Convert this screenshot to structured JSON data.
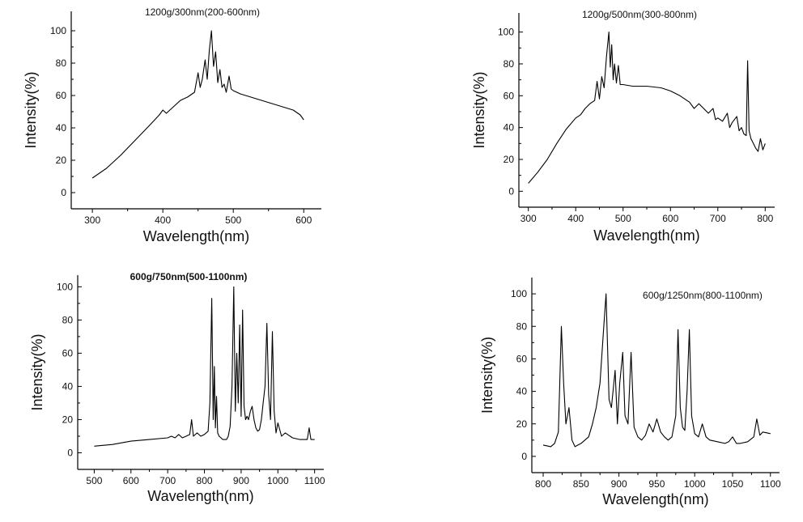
{
  "chart_data": [
    {
      "type": "line",
      "title": "1200g/300nm(200-600nm)",
      "xlabel": "Wavelength(nm)",
      "ylabel": "Intensity(%)",
      "xlim": [
        270,
        625
      ],
      "ylim": [
        -10,
        112
      ],
      "xticks": [
        300,
        400,
        500,
        600
      ],
      "yticks": [
        0,
        20,
        40,
        60,
        80,
        100
      ],
      "series": [
        {
          "color": "#000000",
          "x": [
            300,
            320,
            340,
            360,
            380,
            395,
            400,
            405,
            415,
            425,
            435,
            445,
            450,
            453,
            456,
            460,
            463,
            466,
            469,
            472,
            475,
            478,
            481,
            484,
            487,
            490,
            494,
            497,
            500,
            510,
            525,
            540,
            555,
            570,
            585,
            595,
            600
          ],
          "y": [
            9,
            15,
            23,
            32,
            41,
            48,
            51,
            49,
            53,
            57,
            59,
            62,
            74,
            65,
            70,
            82,
            70,
            88,
            100,
            78,
            87,
            68,
            76,
            65,
            67,
            62,
            72,
            64,
            63,
            61,
            59,
            57,
            55,
            53,
            51,
            48,
            45
          ]
        }
      ]
    },
    {
      "type": "line",
      "title": "1200g/500nm(300-800nm)",
      "xlabel": "Wavelength(nm)",
      "ylabel": "Intensity(%)",
      "xlim": [
        280,
        820
      ],
      "ylim": [
        -10,
        112
      ],
      "xticks": [
        300,
        400,
        500,
        600,
        700,
        800
      ],
      "yticks": [
        0,
        20,
        40,
        60,
        80,
        100
      ],
      "series": [
        {
          "color": "#000000",
          "x": [
            300,
            320,
            340,
            360,
            380,
            400,
            410,
            420,
            430,
            440,
            445,
            450,
            455,
            460,
            465,
            470,
            473,
            476,
            479,
            482,
            486,
            490,
            494,
            500,
            520,
            550,
            580,
            600,
            620,
            640,
            650,
            660,
            680,
            690,
            695,
            700,
            710,
            720,
            725,
            730,
            740,
            745,
            750,
            755,
            760,
            763,
            766,
            770,
            775,
            780,
            785,
            790,
            795,
            800
          ],
          "y": [
            5,
            12,
            20,
            30,
            39,
            46,
            48,
            52,
            55,
            57,
            69,
            58,
            72,
            65,
            85,
            100,
            78,
            92,
            70,
            80,
            68,
            79,
            67,
            67,
            66,
            66,
            65,
            63,
            60,
            56,
            52,
            55,
            49,
            52,
            45,
            46,
            44,
            49,
            40,
            43,
            47,
            38,
            40,
            36,
            35,
            82,
            38,
            33,
            30,
            27,
            25,
            33,
            26,
            30
          ]
        }
      ]
    },
    {
      "type": "line",
      "title": "600g/750nm(500-1100nm)",
      "xlabel": "Wavelength(nm)",
      "ylabel": "Intensity(%)",
      "xlim": [
        455,
        1125
      ],
      "ylim": [
        -10,
        107
      ],
      "xticks": [
        500,
        600,
        700,
        800,
        900,
        1000,
        1100
      ],
      "yticks": [
        0,
        20,
        40,
        60,
        80,
        100
      ],
      "series": [
        {
          "color": "#000000",
          "x": [
            500,
            550,
            600,
            650,
            700,
            710,
            720,
            730,
            740,
            750,
            760,
            765,
            770,
            780,
            790,
            800,
            810,
            815,
            820,
            824,
            827,
            830,
            833,
            836,
            840,
            845,
            850,
            855,
            860,
            865,
            870,
            875,
            880,
            884,
            888,
            892,
            896,
            900,
            904,
            908,
            912,
            916,
            920,
            925,
            930,
            935,
            940,
            945,
            950,
            955,
            960,
            965,
            970,
            975,
            980,
            985,
            990,
            995,
            1000,
            1010,
            1020,
            1040,
            1060,
            1080,
            1085,
            1090,
            1100
          ],
          "y": [
            4,
            5,
            7,
            8,
            9,
            10,
            9,
            11,
            9,
            10,
            11,
            20,
            10,
            12,
            10,
            11,
            13,
            30,
            93,
            20,
            52,
            15,
            34,
            12,
            10,
            9,
            8,
            8,
            8,
            10,
            16,
            40,
            100,
            25,
            60,
            30,
            77,
            22,
            86,
            28,
            20,
            22,
            20,
            25,
            28,
            20,
            15,
            13,
            14,
            20,
            30,
            40,
            78,
            35,
            20,
            73,
            25,
            12,
            18,
            10,
            12,
            9,
            8,
            8,
            15,
            8,
            8
          ]
        }
      ]
    },
    {
      "type": "line",
      "title": "600g/1250nm(800-1100nm)",
      "xlabel": "Wavelength(nm)",
      "ylabel": "Intensity(%)",
      "xlim": [
        785,
        1112
      ],
      "ylim": [
        -10,
        110
      ],
      "xticks": [
        800,
        850,
        900,
        950,
        1000,
        1050,
        1100
      ],
      "yticks": [
        0,
        20,
        40,
        60,
        80,
        100
      ],
      "series": [
        {
          "color": "#000000",
          "x": [
            800,
            810,
            815,
            820,
            824,
            827,
            830,
            834,
            838,
            842,
            850,
            860,
            865,
            870,
            875,
            880,
            883,
            887,
            890,
            895,
            898,
            901,
            905,
            908,
            912,
            916,
            920,
            925,
            930,
            935,
            940,
            945,
            950,
            955,
            960,
            965,
            970,
            975,
            978,
            981,
            984,
            987,
            990,
            993,
            996,
            1000,
            1005,
            1010,
            1015,
            1020,
            1030,
            1040,
            1045,
            1050,
            1055,
            1060,
            1070,
            1078,
            1082,
            1086,
            1090,
            1100
          ],
          "y": [
            7,
            6,
            8,
            15,
            80,
            45,
            20,
            30,
            10,
            6,
            8,
            12,
            20,
            30,
            45,
            80,
            100,
            35,
            30,
            53,
            20,
            45,
            64,
            25,
            20,
            64,
            18,
            12,
            10,
            13,
            20,
            15,
            23,
            15,
            12,
            10,
            12,
            25,
            78,
            30,
            18,
            16,
            40,
            78,
            25,
            14,
            12,
            20,
            12,
            10,
            9,
            8,
            9,
            12,
            8,
            8,
            9,
            12,
            23,
            13,
            15,
            14
          ]
        }
      ]
    }
  ]
}
